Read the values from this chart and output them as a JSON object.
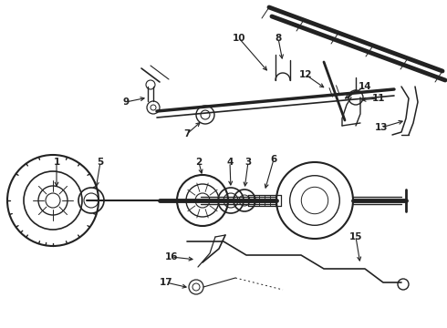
{
  "bg_color": "#ffffff",
  "line_color": "#222222",
  "fig_w": 4.9,
  "fig_h": 3.6,
  "dpi": 100
}
